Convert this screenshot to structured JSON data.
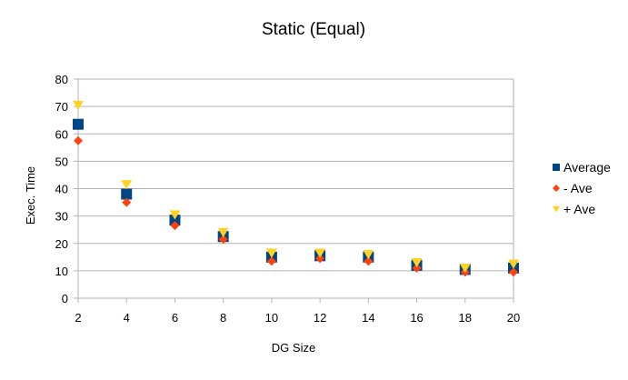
{
  "chart_data": {
    "type": "scatter",
    "title": "Static (Equal)",
    "xlabel": "DG Size",
    "ylabel": "Exec. Time",
    "x": [
      2,
      4,
      6,
      8,
      10,
      12,
      14,
      16,
      18,
      20
    ],
    "xlim": [
      2,
      20
    ],
    "ylim": [
      0,
      80
    ],
    "xticks": [
      2,
      4,
      6,
      8,
      10,
      12,
      14,
      16,
      18,
      20
    ],
    "yticks": [
      0,
      10,
      20,
      30,
      40,
      50,
      60,
      70,
      80
    ],
    "grid": true,
    "legend_position": "right",
    "series": [
      {
        "name": "Average",
        "marker": "square",
        "color": "#004586",
        "values": [
          63.5,
          38,
          28.5,
          22.5,
          15,
          15.5,
          15,
          12,
          10.5,
          11
        ]
      },
      {
        "name": "- Ave",
        "marker": "diamond",
        "color": "#ff420e",
        "values": [
          57.5,
          35,
          26.5,
          21.5,
          13.5,
          14.5,
          13.5,
          11,
          9.5,
          9.5
        ]
      },
      {
        "name": "+ Ave",
        "marker": "triangle-down",
        "color": "#ffd320",
        "values": [
          70.5,
          41.5,
          30.5,
          24,
          16.5,
          16.5,
          16,
          13,
          11,
          12.5
        ]
      }
    ]
  }
}
